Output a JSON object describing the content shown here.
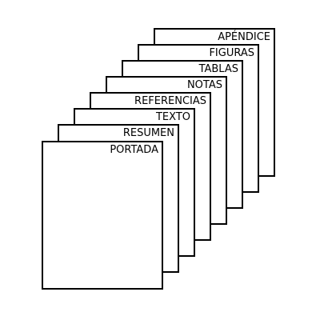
{
  "diagram": {
    "stroke_color": "#000000",
    "fill_color": "#ffffff",
    "pages": [
      {
        "label": "APÉNDICE"
      },
      {
        "label": "FIGURAS"
      },
      {
        "label": "TABLAS"
      },
      {
        "label": "NOTAS"
      },
      {
        "label": "REFERENCIAS"
      },
      {
        "label": "TEXTO"
      },
      {
        "label": "RESUMEN"
      },
      {
        "label": "PORTADA"
      }
    ]
  }
}
